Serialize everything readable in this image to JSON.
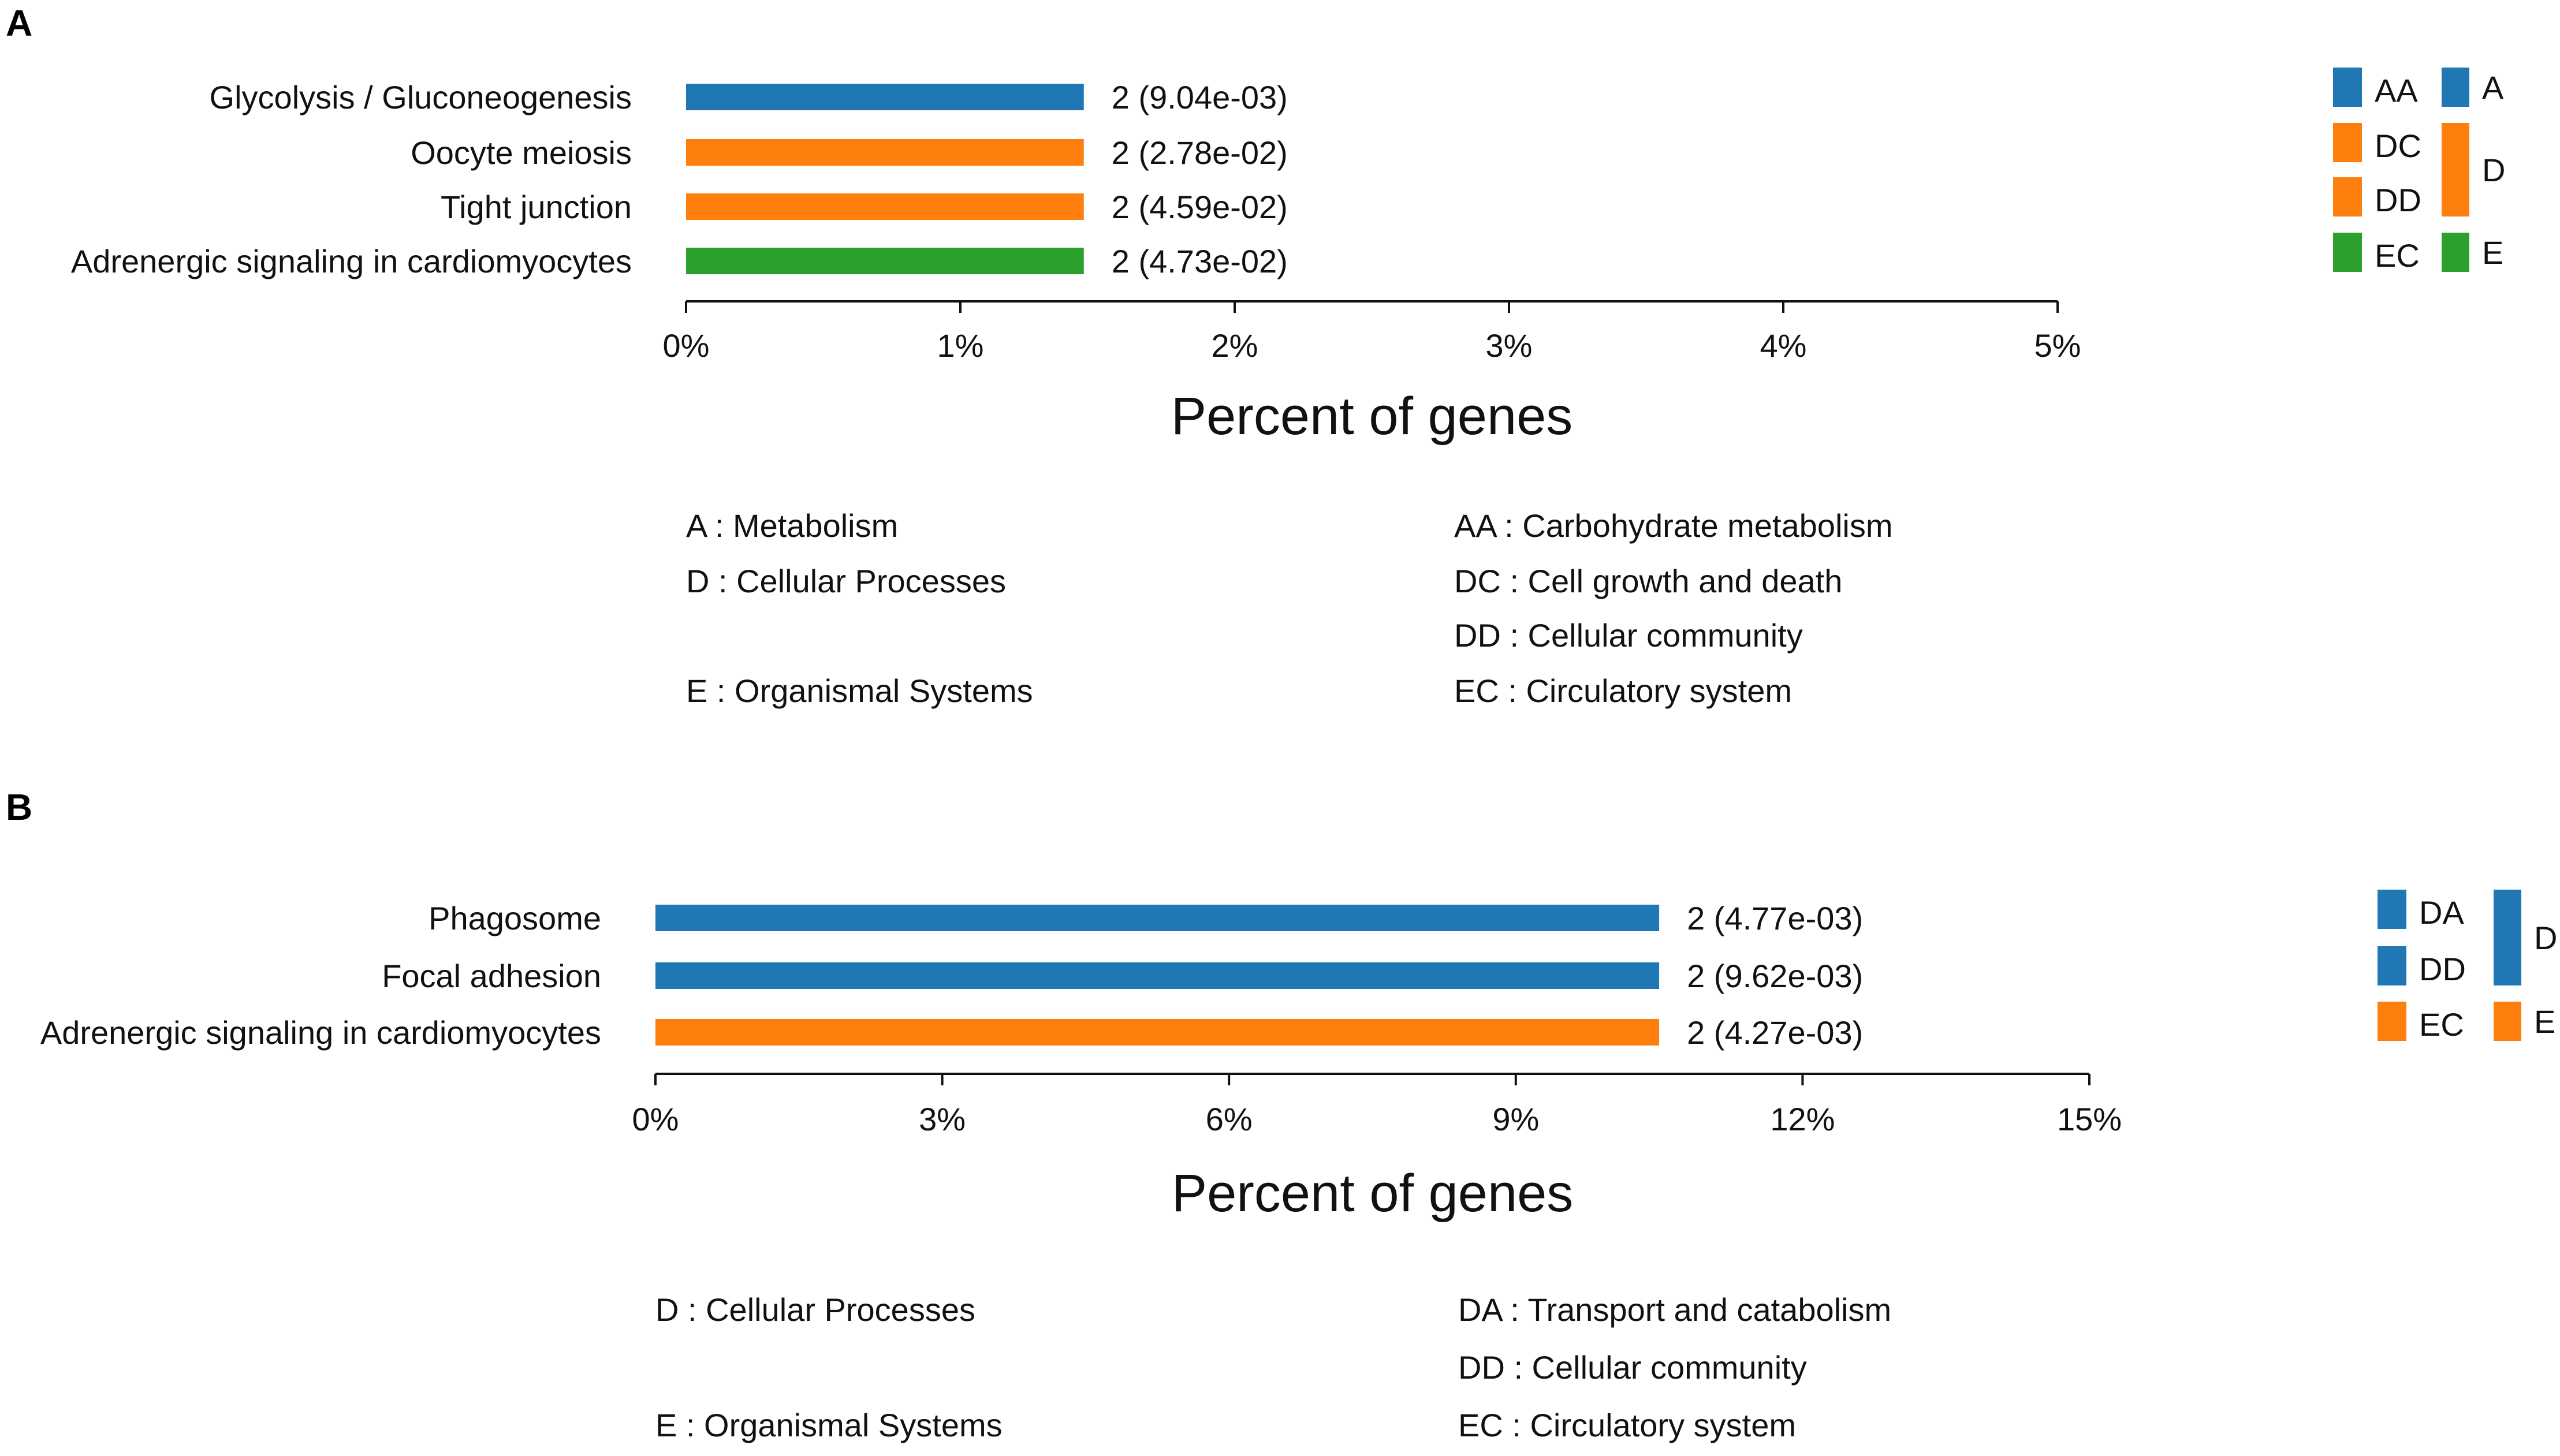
{
  "chart_data": [
    {
      "type": "bar",
      "orientation": "horizontal",
      "panel_label": "A",
      "categories": [
        "Glycolysis / Gluconeogenesis",
        "Oocyte meiosis",
        "Tight junction",
        "Adrenergic signaling in cardiomyocytes"
      ],
      "values": [
        1.45,
        1.45,
        1.45,
        1.45
      ],
      "value_labels": [
        "2 (9.04e-03)",
        "2 (2.78e-02)",
        "2 (4.59e-02)",
        "2 (4.73e-02)"
      ],
      "bar_colors": [
        "#1f77b4",
        "#ff7f0e",
        "#ff7f0e",
        "#2ca02c"
      ],
      "xlim": [
        0,
        5
      ],
      "xticks": [
        0,
        1,
        2,
        3,
        4,
        5
      ],
      "xtick_labels": [
        "0%",
        "1%",
        "2%",
        "3%",
        "4%",
        "5%"
      ],
      "xlabel": "Percent of genes",
      "legend_subclass": [
        {
          "label": "AA",
          "color": "#1f77b4"
        },
        {
          "label": "DC",
          "color": "#ff7f0e"
        },
        {
          "label": "DD",
          "color": "#ff7f0e"
        },
        {
          "label": "EC",
          "color": "#2ca02c"
        }
      ],
      "legend_class": [
        {
          "label": "A",
          "color": "#1f77b4",
          "span": 1
        },
        {
          "label": "D",
          "color": "#ff7f0e",
          "span": 2
        },
        {
          "label": "E",
          "color": "#2ca02c",
          "span": 1
        }
      ],
      "key_left": [
        "A : Metabolism",
        "D : Cellular Processes",
        "",
        "E : Organismal Systems"
      ],
      "key_right": [
        "AA : Carbohydrate metabolism",
        "DC : Cell growth and death",
        "DD : Cellular community",
        "EC : Circulatory system"
      ]
    },
    {
      "type": "bar",
      "orientation": "horizontal",
      "panel_label": "B",
      "categories": [
        "Phagosome",
        "Focal adhesion",
        "Adrenergic signaling in cardiomyocytes"
      ],
      "values": [
        10.5,
        10.5,
        10.5
      ],
      "value_labels": [
        "2 (4.77e-03)",
        "2 (9.62e-03)",
        "2 (4.27e-03)"
      ],
      "bar_colors": [
        "#1f77b4",
        "#1f77b4",
        "#ff7f0e"
      ],
      "xlim": [
        0,
        15
      ],
      "xticks": [
        0,
        3,
        6,
        9,
        12,
        15
      ],
      "xtick_labels": [
        "0%",
        "3%",
        "6%",
        "9%",
        "12%",
        "15%"
      ],
      "xlabel": "Percent of genes",
      "legend_subclass": [
        {
          "label": "DA",
          "color": "#1f77b4"
        },
        {
          "label": "DD",
          "color": "#1f77b4"
        },
        {
          "label": "EC",
          "color": "#ff7f0e"
        }
      ],
      "legend_class": [
        {
          "label": "D",
          "color": "#1f77b4",
          "span": 2
        },
        {
          "label": "E",
          "color": "#ff7f0e",
          "span": 1
        }
      ],
      "key_left": [
        "D : Cellular Processes",
        "",
        "E : Organismal Systems"
      ],
      "key_right": [
        "DA : Transport and catabolism",
        "DD : Cellular community",
        "EC : Circulatory system"
      ]
    }
  ]
}
